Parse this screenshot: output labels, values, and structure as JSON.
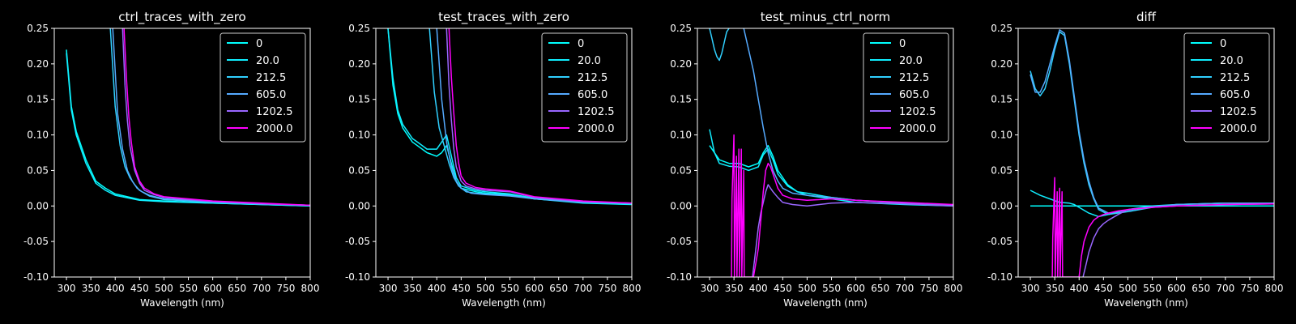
{
  "figure": {
    "background": "#000000",
    "foreground": "#ffffff"
  },
  "series_colors": {
    "0": "#00ffff",
    "20.0": "#10eeff",
    "212.5": "#30d0ff",
    "605.0": "#55aaff",
    "1202.5": "#9966ff",
    "2000.0": "#ff00ff"
  },
  "chart_data": [
    {
      "type": "line",
      "title": "ctrl_traces_with_zero",
      "xlabel": "Wavelength (nm)",
      "ylabel": "",
      "xlim": [
        275,
        800
      ],
      "ylim": [
        -0.1,
        0.25
      ],
      "xticks": [
        300,
        350,
        400,
        450,
        500,
        550,
        600,
        650,
        700,
        750,
        800
      ],
      "yticks": [
        -0.1,
        -0.05,
        0.0,
        0.05,
        0.1,
        0.15,
        0.2,
        0.25
      ],
      "legend_placement": "top-right",
      "grid": false,
      "series": [
        {
          "name": "0",
          "x": [
            300,
            310,
            320,
            340,
            360,
            380,
            400,
            450,
            500,
            600,
            700,
            800
          ],
          "y": [
            0.22,
            0.14,
            0.105,
            0.065,
            0.035,
            0.025,
            0.017,
            0.009,
            0.007,
            0.004,
            0.002,
            0.0
          ]
        },
        {
          "name": "20.0",
          "x": [
            300,
            310,
            320,
            340,
            360,
            380,
            400,
            450,
            500,
            600,
            700,
            800
          ],
          "y": [
            0.215,
            0.135,
            0.1,
            0.06,
            0.032,
            0.022,
            0.015,
            0.008,
            0.006,
            0.004,
            0.002,
            0.0
          ]
        },
        {
          "name": "212.5",
          "x": [
            390,
            400,
            410,
            420,
            430,
            440,
            450,
            470,
            500,
            550,
            600,
            700,
            800
          ],
          "y": [
            0.25,
            0.14,
            0.085,
            0.055,
            0.04,
            0.03,
            0.022,
            0.014,
            0.009,
            0.007,
            0.005,
            0.003,
            0.001
          ]
        },
        {
          "name": "605.0",
          "x": [
            395,
            405,
            415,
            425,
            435,
            445,
            455,
            470,
            500,
            550,
            600,
            700,
            800
          ],
          "y": [
            0.25,
            0.13,
            0.08,
            0.05,
            0.035,
            0.025,
            0.02,
            0.015,
            0.01,
            0.008,
            0.006,
            0.003,
            0.001
          ]
        },
        {
          "name": "1202.5",
          "x": [
            415,
            420,
            425,
            430,
            440,
            450,
            460,
            480,
            500,
            550,
            600,
            700,
            800
          ],
          "y": [
            0.25,
            0.17,
            0.12,
            0.085,
            0.05,
            0.032,
            0.022,
            0.016,
            0.012,
            0.009,
            0.006,
            0.003,
            0.001
          ]
        },
        {
          "name": "2000.0",
          "x": [
            418,
            423,
            428,
            433,
            440,
            450,
            460,
            480,
            500,
            550,
            600,
            700,
            800
          ],
          "y": [
            0.25,
            0.18,
            0.125,
            0.09,
            0.055,
            0.035,
            0.025,
            0.017,
            0.013,
            0.01,
            0.007,
            0.004,
            0.001
          ]
        }
      ]
    },
    {
      "type": "line",
      "title": "test_traces_with_zero",
      "xlabel": "Wavelength (nm)",
      "ylabel": "",
      "xlim": [
        275,
        800
      ],
      "ylim": [
        -0.1,
        0.25
      ],
      "xticks": [
        300,
        350,
        400,
        450,
        500,
        550,
        600,
        650,
        700,
        750,
        800
      ],
      "yticks": [
        -0.1,
        -0.05,
        0.0,
        0.05,
        0.1,
        0.15,
        0.2,
        0.25
      ],
      "legend_placement": "top-right",
      "grid": false,
      "series": [
        {
          "name": "0",
          "x": [
            300,
            310,
            320,
            330,
            340,
            350,
            360,
            380,
            400,
            410,
            420,
            430,
            440,
            450,
            480,
            500,
            550,
            600,
            700,
            800
          ],
          "y": [
            0.25,
            0.17,
            0.13,
            0.11,
            0.1,
            0.09,
            0.085,
            0.075,
            0.07,
            0.075,
            0.085,
            0.06,
            0.035,
            0.025,
            0.02,
            0.018,
            0.016,
            0.01,
            0.004,
            0.002
          ]
        },
        {
          "name": "20.0",
          "x": [
            300,
            310,
            320,
            330,
            340,
            350,
            360,
            380,
            400,
            410,
            420,
            430,
            440,
            450,
            480,
            500,
            550,
            600,
            700,
            800
          ],
          "y": [
            0.25,
            0.18,
            0.135,
            0.115,
            0.105,
            0.095,
            0.09,
            0.08,
            0.08,
            0.09,
            0.1,
            0.07,
            0.04,
            0.028,
            0.022,
            0.02,
            0.017,
            0.011,
            0.005,
            0.003
          ]
        },
        {
          "name": "212.5",
          "x": [
            385,
            395,
            405,
            415,
            425,
            435,
            445,
            460,
            480,
            500,
            550,
            600,
            700,
            800
          ],
          "y": [
            0.25,
            0.16,
            0.11,
            0.085,
            0.06,
            0.04,
            0.028,
            0.02,
            0.018,
            0.017,
            0.015,
            0.01,
            0.005,
            0.003
          ]
        },
        {
          "name": "605.0",
          "x": [
            400,
            410,
            420,
            430,
            440,
            450,
            470,
            500,
            550,
            600,
            700,
            800
          ],
          "y": [
            0.25,
            0.15,
            0.09,
            0.055,
            0.035,
            0.025,
            0.018,
            0.016,
            0.014,
            0.01,
            0.005,
            0.004
          ]
        },
        {
          "name": "1202.5",
          "x": [
            420,
            425,
            430,
            435,
            440,
            450,
            460,
            480,
            500,
            550,
            600,
            700,
            800
          ],
          "y": [
            0.25,
            0.17,
            0.12,
            0.08,
            0.055,
            0.035,
            0.028,
            0.024,
            0.022,
            0.02,
            0.012,
            0.006,
            0.004
          ]
        },
        {
          "name": "2000.0",
          "x": [
            425,
            430,
            435,
            440,
            445,
            450,
            460,
            480,
            500,
            550,
            600,
            700,
            800
          ],
          "y": [
            0.25,
            0.18,
            0.13,
            0.085,
            0.06,
            0.042,
            0.032,
            0.026,
            0.024,
            0.021,
            0.013,
            0.007,
            0.004
          ]
        }
      ]
    },
    {
      "type": "line",
      "title": "test_minus_ctrl_norm",
      "xlabel": "Wavelength (nm)",
      "ylabel": "",
      "xlim": [
        275,
        800
      ],
      "ylim": [
        -0.1,
        0.25
      ],
      "xticks": [
        300,
        350,
        400,
        450,
        500,
        550,
        600,
        650,
        700,
        750,
        800
      ],
      "yticks": [
        -0.1,
        -0.05,
        0.0,
        0.05,
        0.1,
        0.15,
        0.2,
        0.25
      ],
      "legend_placement": "top-right",
      "grid": false,
      "series": [
        {
          "name": "0",
          "x": [
            300,
            320,
            340,
            360,
            380,
            400,
            410,
            420,
            430,
            440,
            460,
            480,
            500,
            550,
            600,
            700,
            800
          ],
          "y": [
            0.085,
            0.065,
            0.06,
            0.06,
            0.055,
            0.06,
            0.075,
            0.085,
            0.07,
            0.05,
            0.03,
            0.02,
            0.015,
            0.01,
            0.005,
            0.002,
            0.0
          ]
        },
        {
          "name": "20.0",
          "x": [
            300,
            310,
            320,
            340,
            360,
            380,
            400,
            410,
            420,
            430,
            440,
            460,
            480,
            500,
            550,
            600,
            700,
            800
          ],
          "y": [
            0.108,
            0.075,
            0.06,
            0.056,
            0.055,
            0.05,
            0.055,
            0.072,
            0.08,
            0.065,
            0.045,
            0.028,
            0.02,
            0.018,
            0.012,
            0.008,
            0.004,
            0.001
          ]
        },
        {
          "name": "212.5",
          "x": [
            300,
            305,
            310,
            315,
            320,
            325,
            330,
            335,
            340
          ],
          "y": [
            0.25,
            0.235,
            0.22,
            0.21,
            0.205,
            0.215,
            0.23,
            0.245,
            0.25
          ]
        },
        {
          "name": "605.0",
          "x": [
            370,
            380,
            390,
            400,
            410,
            420,
            430,
            440,
            450,
            470,
            500,
            550,
            600,
            700,
            800
          ],
          "y": [
            0.25,
            0.22,
            0.19,
            0.15,
            0.11,
            0.075,
            0.05,
            0.035,
            0.025,
            0.018,
            0.015,
            0.012,
            0.008,
            0.004,
            0.001
          ]
        },
        {
          "name": "1202.5",
          "x": [
            388,
            395,
            400,
            405,
            410,
            415,
            420,
            425,
            430,
            440,
            450,
            470,
            500,
            550,
            600,
            700,
            800
          ],
          "y": [
            -0.1,
            -0.06,
            -0.03,
            -0.01,
            0.005,
            0.02,
            0.03,
            0.025,
            0.02,
            0.012,
            0.005,
            0.002,
            0.0,
            0.004,
            0.005,
            0.003,
            0.0
          ]
        },
        {
          "name": "2000.0",
          "x": [
            345,
            346,
            350,
            351,
            355,
            356,
            360,
            361,
            365,
            366,
            370,
            371,
            380,
            390,
            400,
            410,
            415,
            420,
            425,
            430,
            440,
            450,
            470,
            500,
            550,
            600,
            700,
            800
          ],
          "y": [
            -0.1,
            0.01,
            0.1,
            -0.1,
            0.07,
            -0.1,
            0.08,
            -0.1,
            0.08,
            -0.1,
            0.05,
            -0.1,
            -0.1,
            -0.1,
            -0.06,
            0.02,
            0.05,
            0.06,
            0.055,
            0.045,
            0.025,
            0.015,
            0.01,
            0.008,
            0.01,
            0.008,
            0.005,
            0.002
          ]
        }
      ]
    },
    {
      "type": "line",
      "title": "diff",
      "xlabel": "Wavelength (nm)",
      "ylabel": "",
      "xlim": [
        275,
        800
      ],
      "ylim": [
        -0.1,
        0.25
      ],
      "xticks": [
        300,
        350,
        400,
        450,
        500,
        550,
        600,
        650,
        700,
        750,
        800
      ],
      "yticks": [
        -0.1,
        -0.05,
        0.0,
        0.05,
        0.1,
        0.15,
        0.2,
        0.25
      ],
      "legend_placement": "top-right",
      "grid": false,
      "series": [
        {
          "name": "0",
          "x": [
            300,
            800
          ],
          "y": [
            0.0,
            0.0
          ]
        },
        {
          "name": "20.0",
          "x": [
            300,
            320,
            340,
            360,
            380,
            390,
            400,
            420,
            440,
            460,
            500,
            550,
            600,
            700,
            800
          ],
          "y": [
            0.022,
            0.015,
            0.01,
            0.005,
            0.004,
            0.002,
            -0.002,
            -0.01,
            -0.015,
            -0.012,
            -0.005,
            0.0,
            0.002,
            0.004,
            0.004
          ]
        },
        {
          "name": "212.5",
          "x": [
            300,
            310,
            320,
            330,
            340,
            350,
            360,
            370,
            380,
            390,
            400,
            410,
            420,
            430,
            440,
            460,
            500,
            550,
            600,
            700,
            800
          ],
          "y": [
            0.19,
            0.165,
            0.155,
            0.165,
            0.19,
            0.22,
            0.245,
            0.24,
            0.2,
            0.15,
            0.1,
            0.06,
            0.03,
            0.01,
            -0.005,
            -0.012,
            -0.008,
            -0.002,
            0.002,
            0.004,
            0.004
          ]
        },
        {
          "name": "605.0",
          "x": [
            300,
            310,
            320,
            330,
            340,
            350,
            360,
            370,
            380,
            390,
            400,
            410,
            420,
            430,
            440,
            460,
            500,
            550,
            600,
            700,
            800
          ],
          "y": [
            0.185,
            0.16,
            0.16,
            0.175,
            0.2,
            0.225,
            0.248,
            0.243,
            0.205,
            0.155,
            0.105,
            0.065,
            0.035,
            0.012,
            -0.003,
            -0.01,
            -0.006,
            -0.001,
            0.002,
            0.004,
            0.004
          ]
        },
        {
          "name": "1202.5",
          "x": [
            408,
            415,
            420,
            430,
            440,
            450,
            460,
            480,
            500,
            550,
            600,
            700,
            800
          ],
          "y": [
            -0.1,
            -0.08,
            -0.065,
            -0.045,
            -0.032,
            -0.025,
            -0.02,
            -0.012,
            -0.005,
            -0.002,
            0.0,
            0.002,
            0.003
          ]
        },
        {
          "name": "2000.0",
          "x": [
            345,
            346,
            350,
            351,
            355,
            356,
            360,
            361,
            365,
            366,
            370,
            375,
            380,
            390,
            400,
            405,
            410,
            420,
            430,
            440,
            450,
            460,
            480,
            500,
            550,
            600,
            700,
            800
          ],
          "y": [
            -0.1,
            -0.045,
            0.04,
            -0.1,
            0.02,
            -0.1,
            0.025,
            -0.1,
            0.02,
            -0.1,
            -0.1,
            -0.1,
            -0.1,
            -0.1,
            -0.1,
            -0.07,
            -0.05,
            -0.03,
            -0.02,
            -0.015,
            -0.012,
            -0.01,
            -0.007,
            -0.005,
            -0.002,
            0.0,
            0.002,
            0.003
          ]
        }
      ]
    }
  ]
}
